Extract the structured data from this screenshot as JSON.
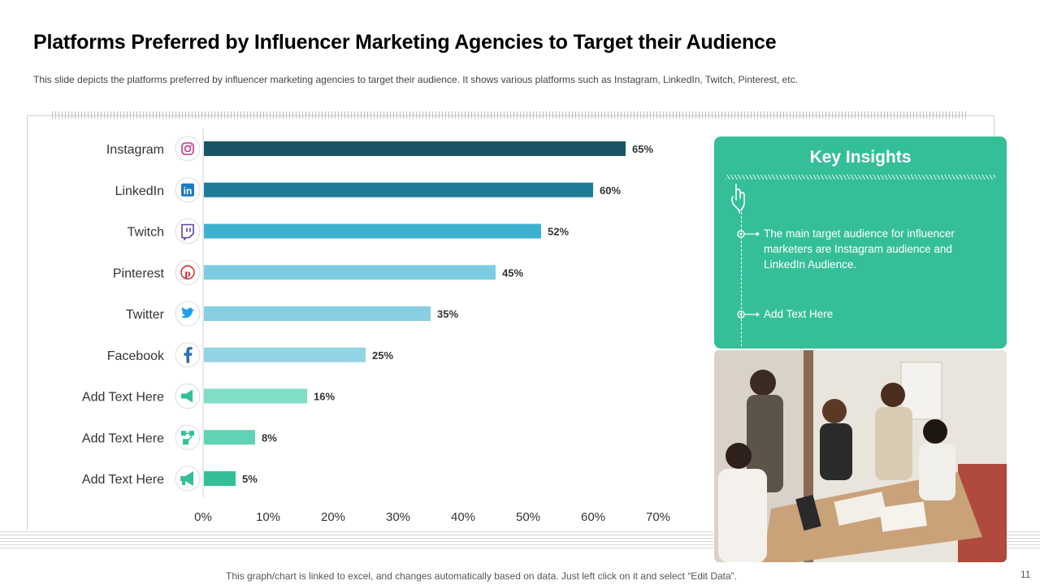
{
  "slide": {
    "title": "Platforms Preferred by Influencer Marketing Agencies to Target their Audience",
    "subtitle": "This slide depicts the platforms preferred by influencer marketing agencies to target their audience. It shows various platforms such as Instagram, LinkedIn, Twitch, Pinterest, etc.",
    "footer": "This graph/chart is linked to excel, and changes automatically based on data. Just left click on it and select “Edit Data”.",
    "page_number": "11"
  },
  "insights": {
    "title": "Key Insights",
    "items": [
      "The main target audience for influencer marketers are Instagram audience and LinkedIn Audience.",
      "Add Text Here"
    ],
    "icon": "pointing-hand-icon",
    "background_color": "#35bf98"
  },
  "photo": {
    "icon": "team-meeting-photo"
  },
  "chart_data": {
    "type": "bar",
    "orientation": "horizontal",
    "categories": [
      "Instagram",
      "LinkedIn",
      "Twitch",
      "Pinterest",
      "Twitter",
      "Facebook",
      "Add Text Here",
      "Add Text Here",
      "Add Text Here"
    ],
    "values": [
      65,
      60,
      52,
      45,
      35,
      25,
      16,
      8,
      5
    ],
    "value_labels": [
      "65%",
      "60%",
      "52%",
      "45%",
      "35%",
      "25%",
      "16%",
      "8%",
      "5%"
    ],
    "icons": [
      "instagram-icon",
      "linkedin-icon",
      "twitch-icon",
      "pinterest-icon",
      "twitter-icon",
      "facebook-icon",
      "megaphone-icon",
      "network-icon",
      "loudspeaker-icon"
    ],
    "bar_colors": [
      "#1b5466",
      "#1f7c99",
      "#3fb0cf",
      "#7ccde2",
      "#88cfe2",
      "#93d3e6",
      "#7fdec5",
      "#5fd4b4",
      "#35bf98"
    ],
    "xlim": [
      0,
      70
    ],
    "ticks": [
      "0%",
      "10%",
      "20%",
      "30%",
      "40%",
      "50%",
      "60%",
      "70%"
    ],
    "xlabel": "",
    "ylabel": "",
    "grid": false,
    "legend": "none"
  }
}
